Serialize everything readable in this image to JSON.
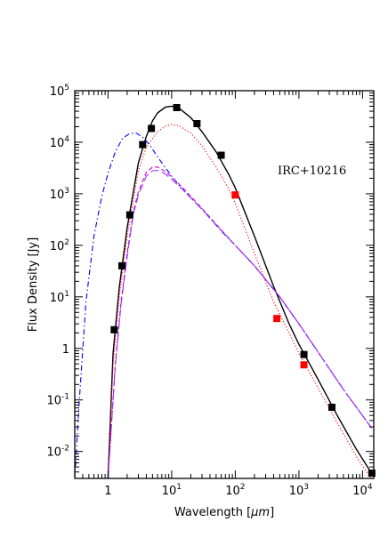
{
  "chart_data": {
    "type": "scatter",
    "title": "",
    "xlabel_prefix": "Wavelength [",
    "xlabel_unit": "μm",
    "xlabel_suffix": "]",
    "ylabel": "Flux Density [Jy]",
    "annotation": "IRC+10216",
    "xscale": "log",
    "yscale": "log",
    "xlim": [
      0.3,
      15000
    ],
    "ylim": [
      0.003,
      100000
    ],
    "grid": false,
    "legend": "none",
    "x_ticks": [
      {
        "value": 1,
        "base": "1",
        "exp": ""
      },
      {
        "value": 10,
        "base": "10",
        "exp": "1"
      },
      {
        "value": 100,
        "base": "10",
        "exp": "2"
      },
      {
        "value": 1000,
        "base": "10",
        "exp": "3"
      },
      {
        "value": 10000,
        "base": "10",
        "exp": "4"
      }
    ],
    "y_ticks": [
      {
        "value": 0.01,
        "base": "10",
        "exp": "-2"
      },
      {
        "value": 0.1,
        "base": "10",
        "exp": "-1"
      },
      {
        "value": 1,
        "base": "1",
        "exp": ""
      },
      {
        "value": 10,
        "base": "10",
        "exp": "1"
      },
      {
        "value": 100,
        "base": "10",
        "exp": "2"
      },
      {
        "value": 1000,
        "base": "10",
        "exp": "3"
      },
      {
        "value": 10000,
        "base": "10",
        "exp": "4"
      },
      {
        "value": 100000,
        "base": "10",
        "exp": "5"
      }
    ],
    "series": [
      {
        "kind": "points",
        "color": "#000000",
        "marker": "square",
        "x": [
          1.25,
          1.65,
          2.2,
          3.5,
          4.8,
          12,
          25,
          60,
          1200,
          3300,
          14000
        ],
        "y": [
          2.3,
          40,
          390,
          9000,
          18500,
          47000,
          23000,
          5600,
          0.76,
          0.072,
          0.0038
        ]
      },
      {
        "kind": "points",
        "color": "#ff0000",
        "marker": "square",
        "x": [
          100,
          450,
          1200
        ],
        "y": [
          950,
          3.8,
          0.48
        ]
      },
      {
        "kind": "line",
        "style": "solid",
        "color": "#000000",
        "x": [
          1.0,
          1.2,
          1.5,
          2,
          3,
          4,
          5,
          6,
          8,
          10,
          13,
          20,
          30,
          50,
          80,
          100,
          200,
          400,
          700,
          1000,
          2000,
          4000,
          8000,
          14000
        ],
        "y": [
          0.003,
          0.8,
          15,
          220,
          4000,
          13000,
          26000,
          37000,
          48000,
          50000,
          46000,
          30000,
          16000,
          6500,
          2300,
          1300,
          150,
          16,
          3.0,
          1.2,
          0.25,
          0.05,
          0.011,
          0.0037
        ]
      },
      {
        "kind": "line",
        "style": "dotted",
        "color": "#ff0000",
        "x": [
          1.0,
          1.2,
          1.5,
          2,
          3,
          4,
          6,
          8,
          10,
          13,
          20,
          30,
          50,
          80,
          100,
          200,
          400,
          700,
          1000,
          2000,
          4000,
          8000,
          14000
        ],
        "y": [
          0.003,
          0.5,
          10,
          150,
          2800,
          8000,
          16000,
          20500,
          22000,
          21000,
          15000,
          8500,
          3300,
          1200,
          650,
          70,
          8,
          2.0,
          0.8,
          0.17,
          0.036,
          0.008,
          0.0028
        ]
      },
      {
        "kind": "line",
        "style": "dashdot",
        "color": "#0000ff",
        "x": [
          0.3,
          0.35,
          0.45,
          0.6,
          0.8,
          1.0,
          1.3,
          1.7,
          2.2,
          2.8,
          3.5,
          4.5,
          6,
          8,
          10,
          15,
          30,
          60,
          100,
          200,
          500,
          1000,
          2000,
          5000,
          14000
        ],
        "y": [
          0.003,
          0.08,
          8,
          150,
          900,
          2500,
          6500,
          12000,
          14800,
          15000,
          12500,
          9000,
          5200,
          3200,
          2200,
          1200,
          500,
          190,
          100,
          40,
          10,
          3.0,
          0.85,
          0.16,
          0.028
        ]
      },
      {
        "kind": "line",
        "style": "dashed",
        "color": "#cc00cc",
        "x": [
          1.0,
          1.3,
          1.6,
          2,
          2.5,
          3,
          4,
          5,
          6,
          8,
          10,
          15,
          30,
          60,
          100,
          200,
          500,
          1000,
          2000,
          5000,
          14000
        ],
        "y": [
          0.003,
          0.5,
          8,
          70,
          450,
          1100,
          2600,
          3300,
          3300,
          2700,
          2100,
          1300,
          520,
          200,
          100,
          40,
          10,
          3.0,
          0.85,
          0.16,
          0.028
        ]
      },
      {
        "kind": "line",
        "style": "longdash",
        "color": "#9933ff",
        "x": [
          1.0,
          1.3,
          1.6,
          2,
          2.5,
          3,
          4,
          5,
          6,
          8,
          10,
          15,
          30,
          60,
          100,
          200,
          500,
          1000,
          2000,
          5000,
          14000
        ],
        "y": [
          0.003,
          0.45,
          7,
          60,
          400,
          950,
          2200,
          2800,
          2850,
          2400,
          1900,
          1200,
          500,
          195,
          100,
          40,
          10,
          3.0,
          0.85,
          0.16,
          0.028
        ]
      }
    ]
  }
}
